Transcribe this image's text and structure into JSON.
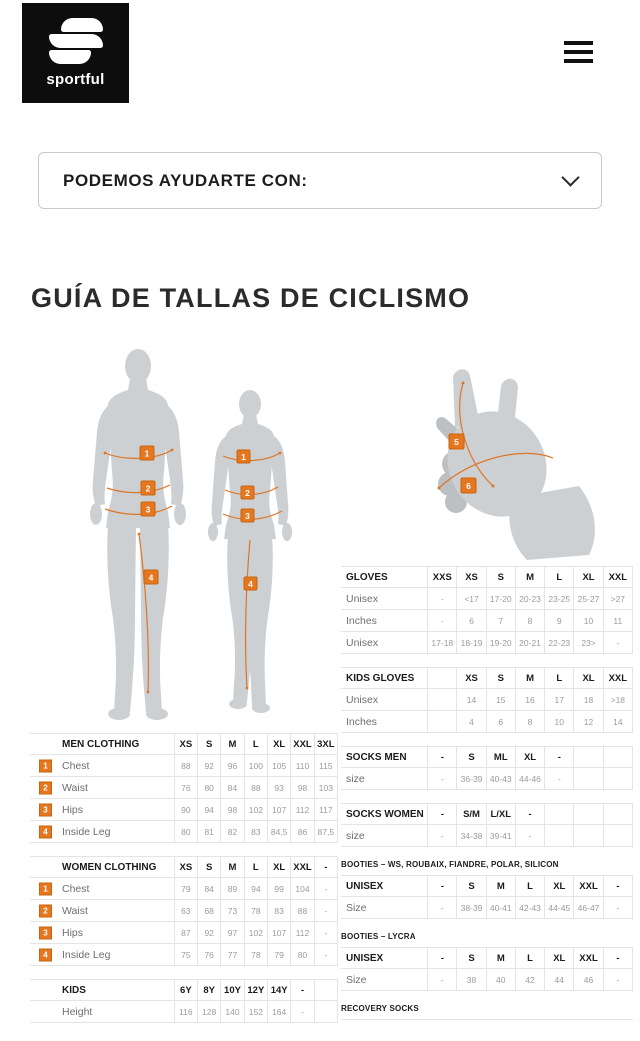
{
  "brand": {
    "logo_text": "sportful"
  },
  "help_bar": {
    "label": "PODEMOS AYUDARTE CON:"
  },
  "page": {
    "title": "GUÍA DE TALLAS DE CICLISMO"
  },
  "figures": {
    "markers": [
      "1",
      "2",
      "3",
      "4",
      "5",
      "6"
    ]
  },
  "colors": {
    "accent_orange": "#E4771F",
    "logo_bg": "#0D0D0D",
    "silhouette_gray": "#CDD0D2",
    "header_text": "#1C1C1C",
    "cell_text": "#9B9B9B"
  },
  "tables": {
    "men_clothing": {
      "label": "MEN CLOTHING",
      "columns": [
        "XS",
        "S",
        "M",
        "L",
        "XL",
        "XXL",
        "3XL"
      ],
      "rows": [
        {
          "badge": "1",
          "label": "Chest",
          "values": [
            "88",
            "92",
            "96",
            "100",
            "105",
            "110",
            "115"
          ]
        },
        {
          "badge": "2",
          "label": "Waist",
          "values": [
            "76",
            "80",
            "84",
            "88",
            "93",
            "98",
            "103"
          ]
        },
        {
          "badge": "3",
          "label": "Hips",
          "values": [
            "90",
            "94",
            "98",
            "102",
            "107",
            "112",
            "117"
          ]
        },
        {
          "badge": "4",
          "label": "Inside Leg",
          "values": [
            "80",
            "81",
            "82",
            "83",
            "84,5",
            "86",
            "87,5"
          ]
        }
      ]
    },
    "women_clothing": {
      "label": "WOMEN CLOTHING",
      "columns": [
        "XS",
        "S",
        "M",
        "L",
        "XL",
        "XXL",
        "-"
      ],
      "rows": [
        {
          "badge": "1",
          "label": "Chest",
          "values": [
            "79",
            "84",
            "89",
            "94",
            "99",
            "104",
            "-"
          ]
        },
        {
          "badge": "2",
          "label": "Waist",
          "values": [
            "63",
            "68",
            "73",
            "78",
            "83",
            "88",
            "-"
          ]
        },
        {
          "badge": "3",
          "label": "Hips",
          "values": [
            "87",
            "92",
            "97",
            "102",
            "107",
            "112",
            "-"
          ]
        },
        {
          "badge": "4",
          "label": "Inside Leg",
          "values": [
            "75",
            "76",
            "77",
            "78",
            "79",
            "80",
            "-"
          ]
        }
      ]
    },
    "kids": {
      "label": "KIDS",
      "columns": [
        "6Y",
        "8Y",
        "10Y",
        "12Y",
        "14Y",
        "-",
        ""
      ],
      "rows": [
        {
          "label": "Height",
          "values": [
            "116",
            "128",
            "140",
            "152",
            "164",
            "-",
            ""
          ]
        }
      ]
    },
    "gloves": {
      "label": "GLOVES",
      "columns": [
        "XXS",
        "XS",
        "S",
        "M",
        "L",
        "XL",
        "XXL"
      ],
      "rows": [
        {
          "badge": "5",
          "label": "Unisex",
          "values": [
            "-",
            "<17",
            "17-20",
            "20-23",
            "23-25",
            "25-27",
            ">27"
          ]
        },
        {
          "label": "Inches",
          "values": [
            "-",
            "6",
            "7",
            "8",
            "9",
            "10",
            "11"
          ]
        },
        {
          "badge": "6",
          "label": "Unisex",
          "values": [
            "17-18",
            "18-19",
            "19-20",
            "20-21",
            "22-23",
            "23>",
            "-"
          ]
        }
      ]
    },
    "kids_gloves": {
      "label": "KIDS GLOVES",
      "columns": [
        "",
        "XS",
        "S",
        "M",
        "L",
        "XL",
        "XXL"
      ],
      "rows": [
        {
          "label": "Unisex",
          "values": [
            "",
            "14",
            "15",
            "16",
            "17",
            "18",
            ">18"
          ]
        },
        {
          "label": "Inches",
          "values": [
            "",
            "4",
            "6",
            "8",
            "10",
            "12",
            "14"
          ]
        }
      ]
    },
    "socks_men": {
      "label": "SOCKS MEN",
      "columns": [
        "-",
        "S",
        "ML",
        "XL",
        "-",
        "",
        ""
      ],
      "rows": [
        {
          "label": "size",
          "values": [
            "-",
            "36-39",
            "40-43",
            "44-46",
            "-",
            "",
            ""
          ]
        }
      ]
    },
    "socks_women": {
      "label": "SOCKS WOMEN",
      "columns": [
        "-",
        "S/M",
        "L/XL",
        "-",
        "",
        "",
        ""
      ],
      "rows": [
        {
          "label": "size",
          "values": [
            "-",
            "34-38",
            "39-41",
            "-",
            "",
            "",
            ""
          ]
        }
      ]
    },
    "booties_main": {
      "title": "BOOTIES – WS, ROUBAIX, FIANDRE, POLAR, SILICON",
      "label": "UNISEX",
      "columns": [
        "-",
        "S",
        "M",
        "L",
        "XL",
        "XXL",
        "-"
      ],
      "rows": [
        {
          "label": "Size",
          "values": [
            "-",
            "38-39",
            "40-41",
            "42-43",
            "44-45",
            "46-47",
            "-"
          ]
        }
      ]
    },
    "booties_lycra": {
      "title": "BOOTIES – LYCRA",
      "label": "UNISEX",
      "columns": [
        "-",
        "S",
        "M",
        "L",
        "XL",
        "XXL",
        "-"
      ],
      "rows": [
        {
          "label": "Size",
          "values": [
            "-",
            "38",
            "40",
            "42",
            "44",
            "46",
            "-"
          ]
        }
      ]
    },
    "recovery_socks": {
      "title": "RECOVERY SOCKS",
      "stub": true
    }
  }
}
